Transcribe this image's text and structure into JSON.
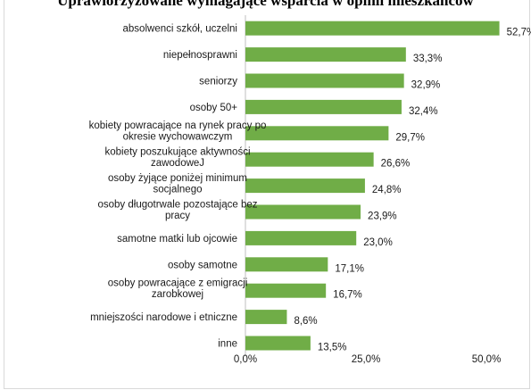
{
  "chart_data": {
    "type": "bar",
    "orientation": "horizontal",
    "title": "Uprawiorzyzowane wymagające wsparcia w opinii mieszkańców",
    "categories": [
      [
        "absolwenci szkół, uczelni"
      ],
      [
        "niepełnosprawni"
      ],
      [
        "seniorzy"
      ],
      [
        "osoby 50+"
      ],
      [
        "kobiety powracające na rynek pracy po",
        "okresie wychowawczym"
      ],
      [
        "kobiety poszukujące aktywności",
        "zawodoweJ"
      ],
      [
        "osoby żyjące poniżej minimum",
        "socjalnego"
      ],
      [
        "osoby długotrwale pozostające bez",
        "pracy"
      ],
      [
        "samotne matki lub ojcowie"
      ],
      [
        "osoby samotne"
      ],
      [
        "osoby powracające z emigracji",
        "zarobkowej"
      ],
      [
        "mniejszości narodowe i etniczne"
      ],
      [
        "inne"
      ]
    ],
    "values": [
      52.7,
      33.3,
      32.9,
      32.4,
      29.7,
      26.6,
      24.8,
      23.9,
      23.0,
      17.1,
      16.7,
      8.6,
      13.5
    ],
    "value_labels": [
      "52,7%",
      "33,3%",
      "32,9%",
      "32,4%",
      "29,7%",
      "26,6%",
      "24,8%",
      "23,9%",
      "23,0%",
      "17,1%",
      "16,7%",
      "8,6%",
      "13,5%"
    ],
    "xlim": [
      0,
      60
    ],
    "xticks": [
      0,
      25,
      50
    ],
    "xtick_labels": [
      "0,0%",
      "25,0%",
      "50,0%"
    ],
    "bar_color": "#70ad47",
    "axis_color": "#bfbfbf",
    "grid": false,
    "legend": "none"
  }
}
